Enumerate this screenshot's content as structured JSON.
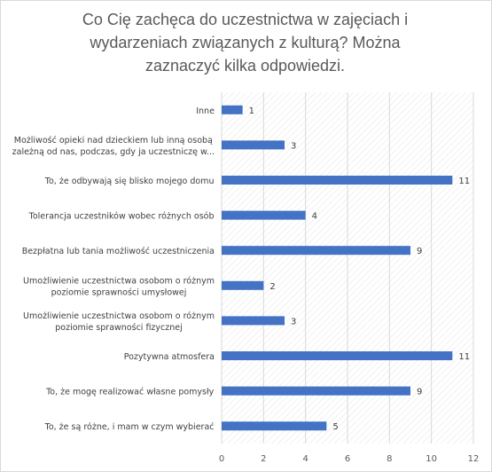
{
  "chart_data": {
    "type": "bar",
    "orientation": "horizontal",
    "title": "Co Cię zachęca do uczestnictwa w zajęciach i\nwydarzeniach  związanych z kulturą? Można\nzaznaczyć kilka odpowiedzi.",
    "categories": [
      [
        "Inne"
      ],
      [
        "Możliwość opieki nad dzieckiem lub inną osobą",
        "zależną od nas, podczas, gdy ja uczestniczę w..."
      ],
      [
        "To, że odbywają się blisko mojego domu"
      ],
      [
        "Tolerancja uczestników wobec różnych osób"
      ],
      [
        "Bezpłatna lub tania możliwość uczestniczenia"
      ],
      [
        "Umożliwienie uczestnictwa osobom o różnym",
        "poziomie sprawności umysłowej"
      ],
      [
        "Umożliwienie uczestnictwa osobom o różnym",
        "poziomie sprawności fizycznej"
      ],
      [
        "Pozytywna atmosfera"
      ],
      [
        "To, że mogę realizować własne pomysły"
      ],
      [
        "To, że są różne, i mam w czym wybierać"
      ]
    ],
    "values": [
      1,
      3,
      11,
      4,
      9,
      2,
      3,
      11,
      9,
      5
    ],
    "xlim": [
      0,
      12
    ],
    "xticks": [
      0,
      2,
      4,
      6,
      8,
      10,
      12
    ],
    "grid": true,
    "data_labels": true,
    "bar_color": "#4472c4",
    "grid_color": "#d9d9d9",
    "pattern_color": "#e4e4e4"
  }
}
